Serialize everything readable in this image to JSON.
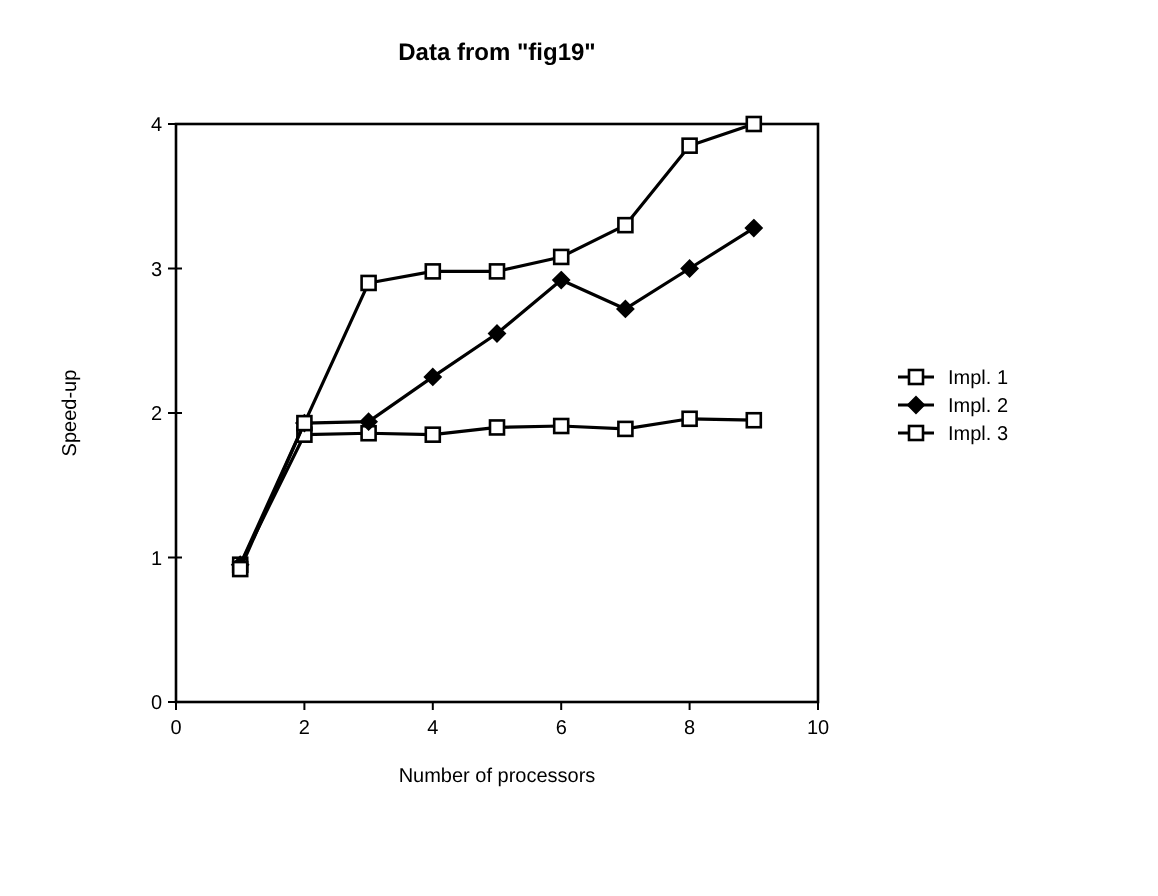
{
  "chart_data": {
    "type": "line",
    "title": "Data from \"fig19\"",
    "xlabel": "Number of processors",
    "ylabel": "Speed-up",
    "x": [
      1,
      2,
      3,
      4,
      5,
      6,
      7,
      8,
      9
    ],
    "series": [
      {
        "name": "Impl. 1",
        "color": "#000000",
        "marker": "square",
        "values": [
          0.95,
          1.85,
          1.86,
          1.85,
          1.9,
          1.91,
          1.89,
          1.96,
          1.95
        ]
      },
      {
        "name": "Impl. 2",
        "color": "#000000",
        "marker": "diamond",
        "values": [
          0.95,
          1.93,
          1.94,
          2.25,
          2.55,
          2.92,
          2.72,
          3.0,
          3.28
        ]
      },
      {
        "name": "Impl. 3",
        "color": "#000000",
        "marker": "square",
        "values": [
          0.92,
          1.93,
          2.9,
          2.98,
          2.98,
          3.08,
          3.3,
          3.85,
          4.0
        ]
      }
    ],
    "xlim": [
      0,
      10
    ],
    "xticks": [
      0,
      2,
      4,
      6,
      8,
      10
    ],
    "ylim": [
      0,
      4
    ],
    "yticks": [
      0,
      1,
      2,
      3,
      4
    ],
    "grid": false,
    "legend": "right",
    "line_style": "solid"
  }
}
